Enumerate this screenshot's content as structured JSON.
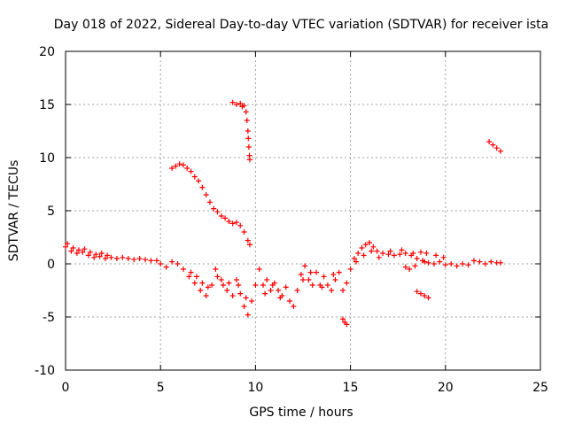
{
  "chart_data": {
    "type": "scatter",
    "title": "Day 018 of 2022, Sidereal Day-to-day VTEC variation (SDTVAR) for receiver ista",
    "xlabel": "GPS time / hours",
    "ylabel": "SDTVAR / TECUs",
    "xlim": [
      0,
      25
    ],
    "ylim": [
      -10,
      20
    ],
    "xticks": [
      0,
      5,
      10,
      15,
      20,
      25
    ],
    "yticks": [
      -10,
      -5,
      0,
      5,
      10,
      15,
      20
    ],
    "grid": true,
    "marker": "+",
    "color": "#ff0000",
    "series": [
      {
        "name": "main-lower-trace",
        "points": [
          [
            0.0,
            1.6
          ],
          [
            0.3,
            1.2
          ],
          [
            0.6,
            1.0
          ],
          [
            0.9,
            1.1
          ],
          [
            1.2,
            0.8
          ],
          [
            1.5,
            0.6
          ],
          [
            1.8,
            0.7
          ],
          [
            2.1,
            0.5
          ],
          [
            2.4,
            0.6
          ],
          [
            2.7,
            0.5
          ],
          [
            3.0,
            0.6
          ],
          [
            3.3,
            0.5
          ],
          [
            3.6,
            0.4
          ],
          [
            3.9,
            0.5
          ],
          [
            4.2,
            0.4
          ],
          [
            4.5,
            0.3
          ],
          [
            4.8,
            0.3
          ],
          [
            5.0,
            0.0
          ],
          [
            5.3,
            -0.3
          ],
          [
            5.6,
            0.2
          ],
          [
            5.9,
            0.0
          ],
          [
            6.2,
            -0.5
          ],
          [
            6.5,
            -1.2
          ],
          [
            6.8,
            -1.8
          ],
          [
            7.1,
            -2.5
          ],
          [
            7.4,
            -3.0
          ],
          [
            7.7,
            -2.0
          ],
          [
            7.9,
            -0.5
          ],
          [
            8.2,
            -1.5
          ],
          [
            8.5,
            -2.5
          ],
          [
            8.8,
            -3.0
          ],
          [
            9.0,
            -1.5
          ],
          [
            9.2,
            -2.8
          ],
          [
            9.4,
            -4.0
          ],
          [
            9.6,
            -4.8
          ],
          [
            9.8,
            -3.5
          ],
          [
            10.0,
            -2.0
          ],
          [
            10.2,
            -0.5
          ],
          [
            10.4,
            -2.0
          ],
          [
            10.6,
            -1.5
          ],
          [
            10.8,
            -2.5
          ],
          [
            11.0,
            -1.8
          ],
          [
            11.2,
            -2.5
          ],
          [
            11.4,
            -3.0
          ],
          [
            11.6,
            -2.2
          ],
          [
            11.8,
            -3.5
          ],
          [
            12.0,
            -4.0
          ],
          [
            12.2,
            -2.5
          ],
          [
            12.4,
            -1.0
          ],
          [
            12.6,
            -0.2
          ],
          [
            12.8,
            -1.5
          ],
          [
            13.0,
            -2.0
          ],
          [
            13.2,
            -0.8
          ],
          [
            13.4,
            -2.0
          ],
          [
            13.6,
            -1.2
          ],
          [
            13.8,
            -2.0
          ],
          [
            14.0,
            -2.5
          ],
          [
            14.2,
            -1.5
          ],
          [
            14.4,
            -0.8
          ],
          [
            14.6,
            -2.5
          ],
          [
            14.8,
            -1.8
          ],
          [
            15.0,
            -0.5
          ],
          [
            15.2,
            0.5
          ],
          [
            15.4,
            1.0
          ],
          [
            15.6,
            1.5
          ],
          [
            15.8,
            1.8
          ],
          [
            16.0,
            2.0
          ],
          [
            16.2,
            1.6
          ],
          [
            16.4,
            1.2
          ],
          [
            16.7,
            1.0
          ],
          [
            17.0,
            0.9
          ],
          [
            17.3,
            0.8
          ],
          [
            17.6,
            0.9
          ],
          [
            17.9,
            1.0
          ],
          [
            18.2,
            0.8
          ],
          [
            18.5,
            0.5
          ],
          [
            18.8,
            0.3
          ],
          [
            19.1,
            0.1
          ],
          [
            19.4,
            0.0
          ],
          [
            19.7,
            0.2
          ],
          [
            20.0,
            -0.1
          ],
          [
            20.3,
            0.0
          ],
          [
            20.6,
            -0.2
          ],
          [
            20.9,
            0.0
          ],
          [
            21.2,
            -0.1
          ],
          [
            21.5,
            0.3
          ],
          [
            21.8,
            0.2
          ],
          [
            22.1,
            0.0
          ],
          [
            22.4,
            0.2
          ],
          [
            22.7,
            0.1
          ],
          [
            22.9,
            0.1
          ]
        ]
      },
      {
        "name": "secondary-lower-trace",
        "points": [
          [
            0.1,
            1.9
          ],
          [
            0.4,
            1.5
          ],
          [
            0.7,
            1.3
          ],
          [
            1.0,
            1.4
          ],
          [
            1.3,
            1.1
          ],
          [
            1.6,
            0.9
          ],
          [
            1.9,
            1.0
          ],
          [
            2.2,
            0.8
          ],
          [
            6.6,
            -0.8
          ],
          [
            6.9,
            -1.2
          ],
          [
            7.2,
            -1.8
          ],
          [
            7.5,
            -2.2
          ],
          [
            8.0,
            -1.2
          ],
          [
            8.3,
            -2.0
          ],
          [
            8.6,
            -1.8
          ],
          [
            9.1,
            -2.0
          ],
          [
            9.5,
            -3.2
          ],
          [
            10.5,
            -2.8
          ],
          [
            10.9,
            -2.0
          ],
          [
            11.3,
            -3.2
          ],
          [
            12.5,
            -1.5
          ],
          [
            12.9,
            -0.8
          ],
          [
            13.5,
            -2.2
          ],
          [
            14.1,
            -1.0
          ],
          [
            15.3,
            0.2
          ],
          [
            15.7,
            0.8
          ],
          [
            16.1,
            1.2
          ],
          [
            16.5,
            0.6
          ],
          [
            17.1,
            1.2
          ],
          [
            17.7,
            1.3
          ],
          [
            18.3,
            1.0
          ],
          [
            18.7,
            1.1
          ],
          [
            19.0,
            1.0
          ],
          [
            19.5,
            0.8
          ],
          [
            19.9,
            0.6
          ],
          [
            17.9,
            -0.3
          ],
          [
            18.1,
            -0.5
          ],
          [
            18.4,
            -0.2
          ],
          [
            18.9,
            0.2
          ]
        ]
      },
      {
        "name": "upper-left-trace",
        "points": [
          [
            5.6,
            9.0
          ],
          [
            5.8,
            9.2
          ],
          [
            6.0,
            9.4
          ],
          [
            6.2,
            9.3
          ],
          [
            6.4,
            9.0
          ],
          [
            6.6,
            8.7
          ],
          [
            6.8,
            8.2
          ],
          [
            7.0,
            7.8
          ],
          [
            7.2,
            7.2
          ],
          [
            7.4,
            6.5
          ],
          [
            7.6,
            5.8
          ],
          [
            7.8,
            5.2
          ],
          [
            8.0,
            4.9
          ],
          [
            8.2,
            4.5
          ],
          [
            8.4,
            4.3
          ],
          [
            8.6,
            4.0
          ],
          [
            8.8,
            3.8
          ],
          [
            9.0,
            3.9
          ],
          [
            9.2,
            3.6
          ],
          [
            9.4,
            3.0
          ],
          [
            9.6,
            2.2
          ],
          [
            9.7,
            1.8
          ]
        ]
      },
      {
        "name": "spike-trace",
        "points": [
          [
            8.8,
            15.2
          ],
          [
            9.0,
            15.0
          ],
          [
            9.2,
            15.1
          ],
          [
            9.3,
            14.8
          ],
          [
            9.4,
            14.9
          ],
          [
            9.5,
            14.3
          ],
          [
            9.55,
            13.5
          ],
          [
            9.6,
            12.5
          ],
          [
            9.62,
            11.8
          ],
          [
            9.65,
            11.0
          ],
          [
            9.68,
            10.2
          ],
          [
            9.7,
            9.8
          ]
        ]
      },
      {
        "name": "late-upper-trace",
        "points": [
          [
            22.3,
            11.5
          ],
          [
            22.5,
            11.2
          ],
          [
            22.7,
            10.9
          ],
          [
            22.9,
            10.6
          ]
        ]
      },
      {
        "name": "small-dip-1",
        "points": [
          [
            14.6,
            -5.2
          ],
          [
            14.7,
            -5.5
          ],
          [
            14.8,
            -5.7
          ]
        ]
      },
      {
        "name": "small-dip-2",
        "points": [
          [
            18.5,
            -2.6
          ],
          [
            18.7,
            -2.8
          ],
          [
            18.9,
            -3.0
          ],
          [
            19.1,
            -3.2
          ]
        ]
      }
    ]
  }
}
